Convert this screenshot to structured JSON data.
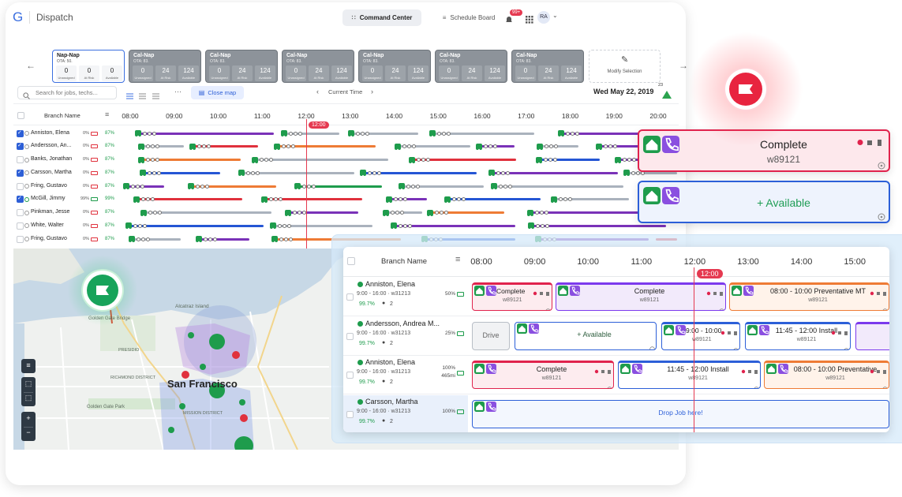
{
  "header": {
    "logo": "G",
    "app": "Dispatch",
    "tabs": [
      "Command Center",
      "Schedule Board"
    ],
    "notifications": "99+",
    "user": "RA"
  },
  "filters": {
    "cards": [
      {
        "name": "Nap-Nap",
        "ota": "OTA: 50.",
        "counts": [
          "0",
          "0",
          "0"
        ]
      },
      {
        "name": "Cal-Nap",
        "ota": "OTA: 83.",
        "counts": [
          "0",
          "24",
          "124"
        ]
      },
      {
        "name": "Cal-Nap",
        "ota": "OTA: 83.",
        "counts": [
          "0",
          "24",
          "124"
        ]
      },
      {
        "name": "Cal-Nap",
        "ota": "OTA: 83.",
        "counts": [
          "0",
          "24",
          "124"
        ]
      },
      {
        "name": "Cal-Nap",
        "ota": "OTA: 83.",
        "counts": [
          "0",
          "24",
          "124"
        ]
      },
      {
        "name": "Cal-Nap",
        "ota": "OTA: 83.",
        "counts": [
          "0",
          "24",
          "124"
        ]
      },
      {
        "name": "Cal-Nap",
        "ota": "OTA: 83.",
        "counts": [
          "0",
          "24",
          "124"
        ]
      }
    ],
    "count_labels": [
      "Unassigned",
      "At Risk",
      "Available"
    ],
    "modify": "Modify Selection"
  },
  "toolbar": {
    "search": "Search for jobs, techs...",
    "close_map": "Close map",
    "current_time": "Current Time",
    "date": "Wed May 22, 2019",
    "alerts": "23"
  },
  "timeline": {
    "column": "Branch Name",
    "hours": [
      "08:00",
      "09:00",
      "10:00",
      "11:00",
      "12:00",
      "13:00",
      "14:00",
      "15:00",
      "16:00",
      "17:00",
      "18:00",
      "19:00",
      "20:00"
    ],
    "now": "12:00",
    "rows": [
      {
        "name": "Anniston, Elena",
        "battery": "0%",
        "score": "87%"
      },
      {
        "name": "Andersson, An...",
        "battery": "0%",
        "score": "87%"
      },
      {
        "name": "Banks, Jonathan",
        "battery": "0%",
        "score": "87%"
      },
      {
        "name": "Carsson, Martha",
        "battery": "0%",
        "score": "87%"
      },
      {
        "name": "Fring, Gustavo",
        "battery": "0%",
        "score": "87%"
      },
      {
        "name": "McGill, Jimmy",
        "battery": "99%",
        "score": "99%"
      },
      {
        "name": "Pinkman, Jesse",
        "battery": "0%",
        "score": "87%"
      },
      {
        "name": "White, Walter",
        "battery": "0%",
        "score": "87%"
      },
      {
        "name": "Fring, Gustavo",
        "battery": "0%",
        "score": "87%"
      }
    ]
  },
  "map": {
    "labels": [
      "Alcatraz Island",
      "Golden Gate Bridge",
      "PRESIDIO",
      "RICHMOND DISTRICT",
      "San Francisco",
      "Golden Gate Park",
      "MISSION DISTRICT"
    ]
  },
  "floating_cards": [
    {
      "title": "Complete",
      "id": "w89121"
    },
    {
      "title": "+ Available"
    }
  ],
  "zoom": {
    "column": "Branch Name",
    "hours": [
      "08:00",
      "09:00",
      "10:00",
      "11:00",
      "12:00",
      "13:00",
      "14:00",
      "15:00"
    ],
    "now": "12:00",
    "rows": [
      {
        "name": "Anniston, Elena",
        "shift": "9:00 - 16:00 · w31213",
        "score": "99.7%",
        "comments": "2",
        "battery": [
          "50%"
        ],
        "jobs": [
          {
            "title": "Complete",
            "id": "w89121"
          },
          {
            "title": "Complete",
            "id": "w89121"
          },
          {
            "title": "08:00 - 10:00 Preventative MT",
            "id": "w89121"
          }
        ]
      },
      {
        "name": "Andersson, Andrea M...",
        "shift": "9:00 - 16:00 · w31213",
        "score": "99.7%",
        "comments": "2",
        "battery": [
          "25%"
        ],
        "jobs": [
          {
            "title": "Drive"
          },
          {
            "title": "+ Available"
          },
          {
            "title": "9:00 - 10:00",
            "id": "w89121"
          },
          {
            "title": "11:45 - 12:00 Install",
            "id": "w89121"
          }
        ]
      },
      {
        "name": "Anniston, Elena",
        "shift": "9:00 - 16:00 · w31213",
        "score": "99.7%",
        "comments": "2",
        "battery": [
          "100%",
          "465mi"
        ],
        "jobs": [
          {
            "title": "Complete",
            "id": "w89121"
          },
          {
            "title": "11:45 - 12:00 Install",
            "id": "w89121"
          },
          {
            "title": "08:00 - 10:00 Preventative",
            "id": "w89121"
          }
        ]
      },
      {
        "name": "Carsson, Martha",
        "shift": "9:00 - 16:00 · w31213",
        "score": "99.7%",
        "comments": "2",
        "battery": [
          "100%"
        ],
        "jobs": [
          {
            "title": "Drop Job here!"
          }
        ]
      }
    ]
  }
}
